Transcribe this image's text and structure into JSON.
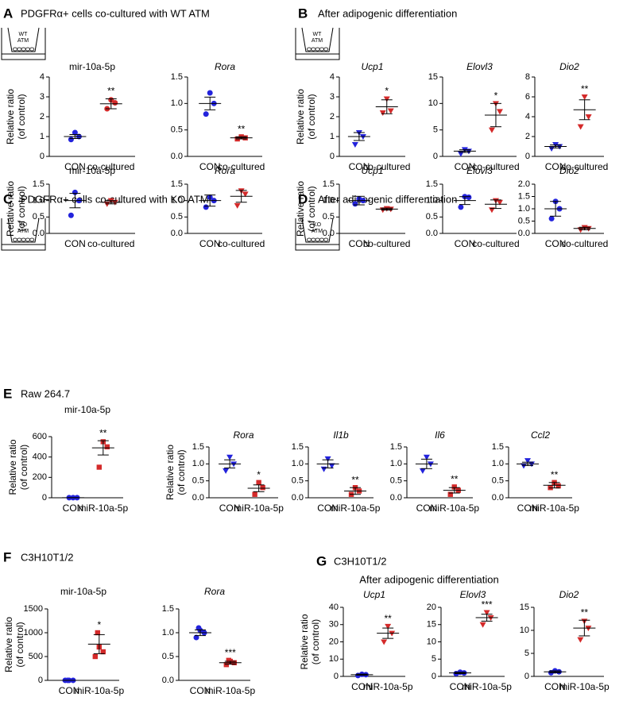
{
  "panels": [
    {
      "letter": "A",
      "title": "PDGFRα+ cells co-cultured with WT ATM",
      "icon": [
        "WT",
        "ATM"
      ]
    },
    {
      "letter": "B",
      "title": "After adipogenic differentiation",
      "icon": [
        "WT",
        "ATM"
      ]
    },
    {
      "letter": "C",
      "title": "PDGFRα+ cells co-cultured with KO ATM",
      "icon": [
        "KO",
        "ATM"
      ]
    },
    {
      "letter": "D",
      "title": "After adipogenic differentiation",
      "icon": [
        "KO",
        "ATM"
      ]
    },
    {
      "letter": "E",
      "title": "Raw 264.7"
    },
    {
      "letter": "F",
      "title": "C3H10T1/2"
    },
    {
      "letter": "G",
      "title": "C3H10T1/2",
      "subtitle": "After adipogenic differentiation"
    }
  ],
  "chart_data": [
    {
      "type": "dot",
      "title": "mir-10a-5p",
      "italic": false,
      "ylabel": [
        "Relative ratio",
        "(of control)"
      ],
      "categories": [
        "CON",
        "co-cultured"
      ],
      "ylim": [
        0,
        4
      ],
      "yticks": [
        0,
        1,
        2,
        3,
        4
      ],
      "groups": [
        {
          "color": "#2323dc",
          "marker": "circle",
          "points": [
            0.85,
            1.0,
            1.2
          ],
          "mean": 1.0,
          "sem": 0.1
        },
        {
          "color": "#d42a2a",
          "marker": "circle",
          "points": [
            2.4,
            2.7,
            2.85
          ],
          "mean": 2.65,
          "sem": 0.25,
          "annotation": "**"
        }
      ]
    },
    {
      "type": "dot",
      "title": "Rora",
      "italic": true,
      "categories": [
        "CON",
        "co-cultured"
      ],
      "ylim": [
        0,
        1.5
      ],
      "yticks": [
        {
          "value": 0,
          "label": "0.0"
        },
        0.5,
        {
          "value": 1,
          "label": "1.0"
        },
        1.5
      ],
      "groups": [
        {
          "color": "#2323dc",
          "marker": "circle",
          "points": [
            0.8,
            1.0,
            1.2
          ],
          "mean": 1.0,
          "sem": 0.12
        },
        {
          "color": "#d42a2a",
          "marker": "square",
          "points": [
            0.33,
            0.35,
            0.37
          ],
          "mean": 0.35,
          "sem": 0.02,
          "annotation": "**"
        }
      ]
    },
    {
      "type": "dot",
      "title": "Ucp1",
      "italic": true,
      "ylabel": [
        "Relative ratio",
        "(of control)"
      ],
      "categories": [
        "CON",
        "co-cultured"
      ],
      "ylim": [
        0,
        4
      ],
      "yticks": [
        0,
        1,
        2,
        3,
        4
      ],
      "groups": [
        {
          "color": "#2323dc",
          "marker": "triangle",
          "points": [
            0.6,
            1.0,
            1.2
          ],
          "mean": 1.0,
          "sem": 0.2
        },
        {
          "color": "#d42a2a",
          "marker": "triangle",
          "points": [
            2.2,
            2.3,
            2.9
          ],
          "mean": 2.5,
          "sem": 0.35,
          "annotation": "*"
        }
      ]
    },
    {
      "type": "dot",
      "title": "Elovl3",
      "italic": true,
      "categories": [
        "CON",
        "co-cultured"
      ],
      "ylim": [
        0,
        15
      ],
      "yticks": [
        0,
        5,
        10,
        15
      ],
      "groups": [
        {
          "color": "#2323dc",
          "marker": "triangle",
          "points": [
            0.5,
            1.0,
            1.3
          ],
          "mean": 1.0,
          "sem": 0.25
        },
        {
          "color": "#d42a2a",
          "marker": "triangle",
          "points": [
            5,
            8.5,
            10
          ],
          "mean": 7.8,
          "sem": 2.2,
          "annotation": "*"
        }
      ]
    },
    {
      "type": "dot",
      "title": "Dio2",
      "italic": true,
      "categories": [
        "CON",
        "co-cultured"
      ],
      "ylim": [
        0,
        8
      ],
      "yticks": [
        0,
        2,
        4,
        6,
        8
      ],
      "groups": [
        {
          "color": "#2323dc",
          "marker": "triangle",
          "points": [
            0.8,
            1.0,
            1.2
          ],
          "mean": 1.0,
          "sem": 0.15
        },
        {
          "color": "#d42a2a",
          "marker": "triangle",
          "points": [
            3,
            4,
            6
          ],
          "mean": 4.7,
          "sem": 1.0,
          "annotation": "**"
        }
      ]
    },
    {
      "type": "dot",
      "title": "mir-10a-5p",
      "italic": false,
      "ylabel": [
        "Relative ratio",
        "(of control)"
      ],
      "categories": [
        "CON",
        "co-cultured"
      ],
      "ylim": [
        0,
        1.5
      ],
      "yticks": [
        {
          "value": 0,
          "label": "0.0"
        },
        0.5,
        {
          "value": 1,
          "label": "1.0"
        },
        1.5
      ],
      "groups": [
        {
          "color": "#2323dc",
          "marker": "circle",
          "points": [
            0.55,
            1.0,
            1.25
          ],
          "mean": 1.0,
          "sem": 0.22
        },
        {
          "color": "#d42a2a",
          "marker": "triangle",
          "points": [
            0.9,
            0.95,
            1.0
          ],
          "mean": 0.95,
          "sem": 0.05
        }
      ]
    },
    {
      "type": "dot",
      "title": "Rora",
      "italic": true,
      "categories": [
        "CON",
        "co-cultured"
      ],
      "ylim": [
        0,
        1.5
      ],
      "yticks": [
        {
          "value": 0,
          "label": "0.0"
        },
        0.5,
        {
          "value": 1,
          "label": "1.0"
        },
        1.5
      ],
      "groups": [
        {
          "color": "#2323dc",
          "marker": "circle",
          "points": [
            0.8,
            1.0,
            1.1
          ],
          "mean": 1.0,
          "sem": 0.17
        },
        {
          "color": "#d42a2a",
          "marker": "triangle",
          "points": [
            0.85,
            1.2,
            1.3
          ],
          "mean": 1.13,
          "sem": 0.18
        }
      ]
    },
    {
      "type": "dot",
      "title": "Ucp1",
      "italic": true,
      "ylabel": [
        "Relative ratio",
        "(of control)"
      ],
      "categories": [
        "CON",
        "co-cultured"
      ],
      "ylim": [
        0,
        1.5
      ],
      "yticks": [
        {
          "value": 0,
          "label": "0.0"
        },
        0.5,
        {
          "value": 1,
          "label": "1.0"
        },
        1.5
      ],
      "groups": [
        {
          "color": "#2323dc",
          "marker": "circle",
          "points": [
            0.9,
            1.0,
            1.05
          ],
          "mean": 1.0,
          "sem": 0.13
        },
        {
          "color": "#d42a2a",
          "marker": "triangle",
          "points": [
            0.72,
            0.74,
            0.76
          ],
          "mean": 0.74,
          "sem": 0.03
        }
      ]
    },
    {
      "type": "dot",
      "title": "Elovl3",
      "italic": true,
      "categories": [
        "CON",
        "co-cultured"
      ],
      "ylim": [
        0,
        1.5
      ],
      "yticks": [
        {
          "value": 0,
          "label": "0.0"
        },
        0.5,
        {
          "value": 1,
          "label": "1.0"
        },
        1.5
      ],
      "groups": [
        {
          "color": "#2323dc",
          "marker": "circle",
          "points": [
            0.8,
            1.1,
            1.12
          ],
          "mean": 1.0,
          "sem": 0.12
        },
        {
          "color": "#d42a2a",
          "marker": "triangle",
          "points": [
            0.72,
            0.95,
            1.0
          ],
          "mean": 0.89,
          "sem": 0.13
        }
      ]
    },
    {
      "type": "dot",
      "title": "Dio2",
      "italic": true,
      "categories": [
        "CON",
        "co-cultured"
      ],
      "ylim": [
        0,
        2
      ],
      "yticks": [
        {
          "value": 0,
          "label": "0.0"
        },
        0.5,
        {
          "value": 1,
          "label": "1.0"
        },
        1.5,
        {
          "value": 2,
          "label": "2.0"
        }
      ],
      "groups": [
        {
          "color": "#2323dc",
          "marker": "circle",
          "points": [
            0.6,
            1.0,
            1.3
          ],
          "mean": 1.0,
          "sem": 0.3
        },
        {
          "color": "#d42a2a",
          "marker": "triangle",
          "points": [
            0.15,
            0.2,
            0.24
          ],
          "mean": 0.2,
          "sem": 0.05
        }
      ]
    },
    {
      "type": "dot",
      "title": "mir-10a-5p",
      "italic": false,
      "ylabel": [
        "Relative ratio",
        "(of control)"
      ],
      "categories": [
        "CON",
        "miR-10a-5p"
      ],
      "ylim": [
        0,
        600
      ],
      "yticks": [
        0,
        200,
        400,
        600
      ],
      "groups": [
        {
          "color": "#2323dc",
          "marker": "circle",
          "points": [
            1,
            1,
            1
          ],
          "mean": 1,
          "sem": 0
        },
        {
          "color": "#d42a2a",
          "marker": "square",
          "points": [
            300,
            500,
            550
          ],
          "mean": 490,
          "sem": 70,
          "annotation": "**"
        }
      ]
    },
    {
      "type": "dot",
      "title": "Rora",
      "italic": true,
      "ylabel": [
        "Relative ratio",
        "(of control)"
      ],
      "categories": [
        "CON",
        "miR-10a-5p"
      ],
      "ylim": [
        0,
        1.5
      ],
      "yticks": [
        {
          "value": 0,
          "label": "0.0"
        },
        0.5,
        {
          "value": 1,
          "label": "1.0"
        },
        1.5
      ],
      "groups": [
        {
          "color": "#2323dc",
          "marker": "triangle",
          "points": [
            0.8,
            1.0,
            1.2
          ],
          "mean": 1.0,
          "sem": 0.12
        },
        {
          "color": "#d42a2a",
          "marker": "square",
          "points": [
            0.1,
            0.3,
            0.45
          ],
          "mean": 0.28,
          "sem": 0.1,
          "annotation": "*"
        }
      ]
    },
    {
      "type": "dot",
      "title": "Il1b",
      "italic": true,
      "categories": [
        "CON",
        "miR-10a-5p"
      ],
      "ylim": [
        0,
        1.5
      ],
      "yticks": [
        {
          "value": 0,
          "label": "0.0"
        },
        0.5,
        {
          "value": 1,
          "label": "1.0"
        },
        1.5
      ],
      "groups": [
        {
          "color": "#2323dc",
          "marker": "triangle",
          "points": [
            0.85,
            0.95,
            1.15
          ],
          "mean": 1.0,
          "sem": 0.12
        },
        {
          "color": "#d42a2a",
          "marker": "square",
          "points": [
            0.1,
            0.2,
            0.3
          ],
          "mean": 0.2,
          "sem": 0.1,
          "annotation": "**"
        }
      ]
    },
    {
      "type": "dot",
      "title": "Il6",
      "italic": true,
      "categories": [
        "CON",
        "miR-10a-5p"
      ],
      "ylim": [
        0,
        1.5
      ],
      "yticks": [
        {
          "value": 0,
          "label": "0.0"
        },
        0.5,
        {
          "value": 1,
          "label": "1.0"
        },
        1.5
      ],
      "groups": [
        {
          "color": "#2323dc",
          "marker": "triangle",
          "points": [
            0.8,
            1.0,
            1.2
          ],
          "mean": 1.0,
          "sem": 0.14
        },
        {
          "color": "#d42a2a",
          "marker": "square",
          "points": [
            0.1,
            0.22,
            0.32
          ],
          "mean": 0.22,
          "sem": 0.08,
          "annotation": "**"
        }
      ]
    },
    {
      "type": "dot",
      "title": "Ccl2",
      "italic": true,
      "categories": [
        "CON",
        "miR-10a-5p"
      ],
      "ylim": [
        0,
        1.5
      ],
      "yticks": [
        {
          "value": 0,
          "label": "0.0"
        },
        0.5,
        {
          "value": 1,
          "label": "1.0"
        },
        1.5
      ],
      "groups": [
        {
          "color": "#2323dc",
          "marker": "triangle",
          "points": [
            0.95,
            1.0,
            1.1
          ],
          "mean": 1.0,
          "sem": 0.05
        },
        {
          "color": "#d42a2a",
          "marker": "square",
          "points": [
            0.3,
            0.35,
            0.45
          ],
          "mean": 0.37,
          "sem": 0.08,
          "annotation": "**"
        }
      ]
    },
    {
      "type": "dot",
      "title": "mir-10a-5p",
      "italic": false,
      "ylabel": [
        "Relative ratio",
        "(of control)"
      ],
      "categories": [
        "CON",
        "miR-10a-5p"
      ],
      "ylim": [
        0,
        1500
      ],
      "yticks": [
        0,
        500,
        1000,
        1500
      ],
      "groups": [
        {
          "color": "#2323dc",
          "marker": "circle",
          "points": [
            1,
            1,
            1,
            1
          ],
          "mean": 1,
          "sem": 0
        },
        {
          "color": "#d42a2a",
          "marker": "square",
          "points": [
            500,
            600,
            700,
            1000
          ],
          "mean": 760,
          "sem": 200,
          "annotation": "*"
        }
      ]
    },
    {
      "type": "dot",
      "title": "Rora",
      "italic": true,
      "categories": [
        "CON",
        "miR-10a-5p"
      ],
      "ylim": [
        0,
        1.5
      ],
      "yticks": [
        {
          "value": 0,
          "label": "0.0"
        },
        0.5,
        {
          "value": 1,
          "label": "1.0"
        },
        1.5
      ],
      "groups": [
        {
          "color": "#2323dc",
          "marker": "circle",
          "points": [
            0.9,
            1.0,
            1.05,
            1.1
          ],
          "mean": 1.0,
          "sem": 0.06
        },
        {
          "color": "#d42a2a",
          "marker": "square",
          "points": [
            0.33,
            0.37,
            0.4,
            0.42
          ],
          "mean": 0.37,
          "sem": 0.03,
          "annotation": "***"
        }
      ]
    },
    {
      "type": "dot",
      "title": "Ucp1",
      "italic": true,
      "ylabel": [
        "Relative ratio",
        "(of control)"
      ],
      "categories": [
        "CON",
        "miR-10a-5p"
      ],
      "ylim": [
        0,
        40
      ],
      "yticks": [
        0,
        10,
        20,
        30,
        40
      ],
      "groups": [
        {
          "color": "#2323dc",
          "marker": "circle",
          "points": [
            0.5,
            1.0,
            1.2
          ],
          "mean": 1.0,
          "sem": 0.3
        },
        {
          "color": "#d42a2a",
          "marker": "triangle",
          "points": [
            20,
            25,
            29
          ],
          "mean": 25,
          "sem": 3,
          "annotation": "**"
        }
      ]
    },
    {
      "type": "dot",
      "title": "Elovl3",
      "italic": true,
      "categories": [
        "CON",
        "miR-10a-5p"
      ],
      "ylim": [
        0,
        20
      ],
      "yticks": [
        0,
        5,
        10,
        15,
        20
      ],
      "groups": [
        {
          "color": "#2323dc",
          "marker": "circle",
          "points": [
            0.8,
            1.0,
            1.2
          ],
          "mean": 1.0,
          "sem": 0.2
        },
        {
          "color": "#d42a2a",
          "marker": "triangle",
          "points": [
            15,
            17,
            18.5
          ],
          "mean": 17,
          "sem": 1,
          "annotation": "***"
        }
      ]
    },
    {
      "type": "dot",
      "title": "Dio2",
      "italic": true,
      "categories": [
        "CON",
        "miR-10a-5p"
      ],
      "ylim": [
        0,
        15
      ],
      "yticks": [
        0,
        5,
        10,
        15
      ],
      "groups": [
        {
          "color": "#2323dc",
          "marker": "circle",
          "points": [
            0.8,
            1.0,
            1.2
          ],
          "mean": 1.0,
          "sem": 0.2
        },
        {
          "color": "#d42a2a",
          "marker": "triangle",
          "points": [
            8,
            10.5,
            12
          ],
          "mean": 10.5,
          "sem": 1.7,
          "annotation": "**"
        }
      ]
    }
  ]
}
